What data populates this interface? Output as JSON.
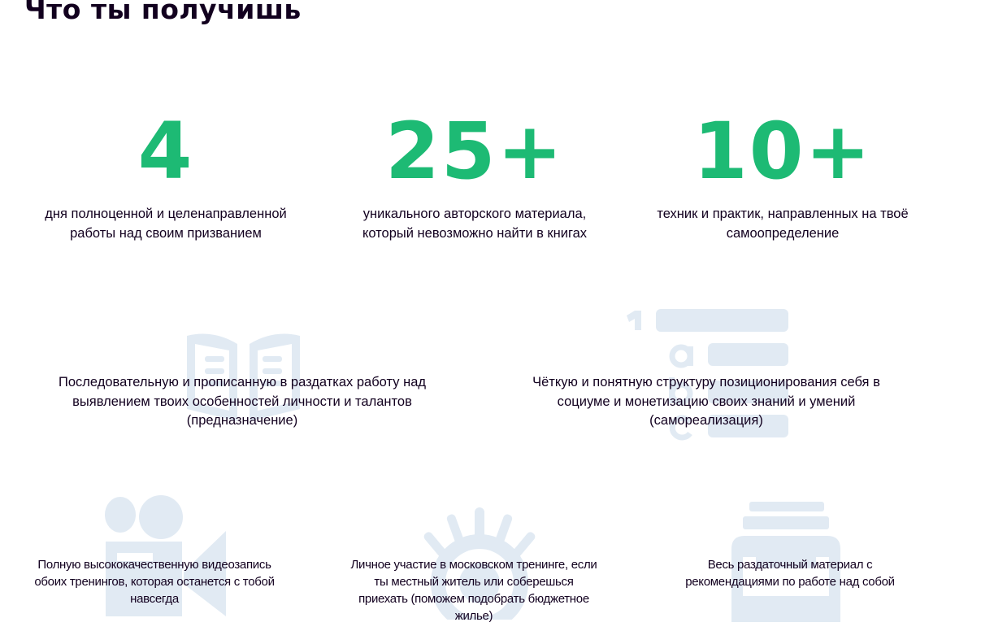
{
  "title": "Что ты получишь",
  "accent_color": "#1dba74",
  "icon_color": "#e1eaf3",
  "stats": [
    {
      "value": "4",
      "line1": "дня полноценной и целенаправленной",
      "line2": "работы над своим призванием"
    },
    {
      "value": "25+",
      "line1": "уникального авторского материала,",
      "line2": "который невозможно найти в книгах"
    },
    {
      "value": "10+",
      "line1": "техник и практик, направленных на твоё",
      "line2": "самоопределение"
    }
  ],
  "features": [
    {
      "icon": "open-book-icon",
      "lines": [
        "Последовательную и прописанную в раздатках работу над",
        "выявлением твоих особенностей личности и талантов",
        "(предназначение)"
      ]
    },
    {
      "icon": "numbered-list-icon",
      "lines": [
        "Чёткую и понятную структуру позиционирования себя в",
        "социуме и монетизацию своих знаний и умений",
        "(самореализация)"
      ]
    },
    {
      "icon": "video-camera-icon",
      "lines": [
        "Полную высококачественную видеозапись",
        "обоих тренингов, которая останется с тобой",
        "навсегда"
      ]
    },
    {
      "icon": "eye-icon",
      "lines": [
        "Личное участие в московском тренинге, если",
        "ты местный житель или соберешься",
        "приехать (поможем подобрать бюджетное",
        "жилье)"
      ]
    },
    {
      "icon": "printer-icon",
      "lines": [
        "Весь раздаточный материал с",
        "рекомендациями по работе над собой"
      ]
    }
  ]
}
